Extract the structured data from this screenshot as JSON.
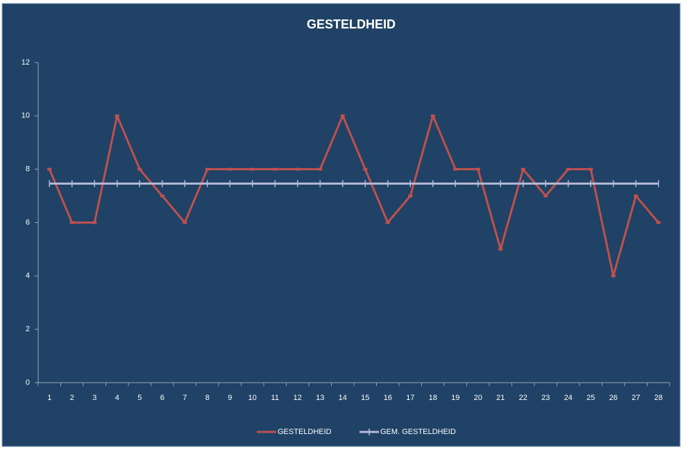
{
  "chart_data": {
    "type": "line",
    "title": "GESTELDHEID",
    "categories": [
      1,
      2,
      3,
      4,
      5,
      6,
      7,
      8,
      9,
      10,
      11,
      12,
      13,
      14,
      15,
      16,
      17,
      18,
      19,
      20,
      21,
      22,
      23,
      24,
      25,
      26,
      27,
      28
    ],
    "series": [
      {
        "name": "GESTELDHEID",
        "color": "#c0504d",
        "values": [
          8,
          6,
          6,
          10,
          8,
          7,
          6,
          8,
          8,
          8,
          8,
          8,
          8,
          10,
          8,
          6,
          7,
          10,
          8,
          8,
          5,
          8,
          7,
          8,
          8,
          4,
          7,
          6
        ]
      },
      {
        "name": "GEM. GESTELDHEID",
        "color": "#b7b9d6",
        "values": [
          7.46,
          7.46,
          7.46,
          7.46,
          7.46,
          7.46,
          7.46,
          7.46,
          7.46,
          7.46,
          7.46,
          7.46,
          7.46,
          7.46,
          7.46,
          7.46,
          7.46,
          7.46,
          7.46,
          7.46,
          7.46,
          7.46,
          7.46,
          7.46,
          7.46,
          7.46,
          7.46,
          7.46
        ]
      }
    ],
    "ylim": [
      0,
      12
    ],
    "yticks": [
      0,
      2,
      4,
      6,
      8,
      10,
      12
    ],
    "grid": false,
    "legend": "bottom"
  }
}
